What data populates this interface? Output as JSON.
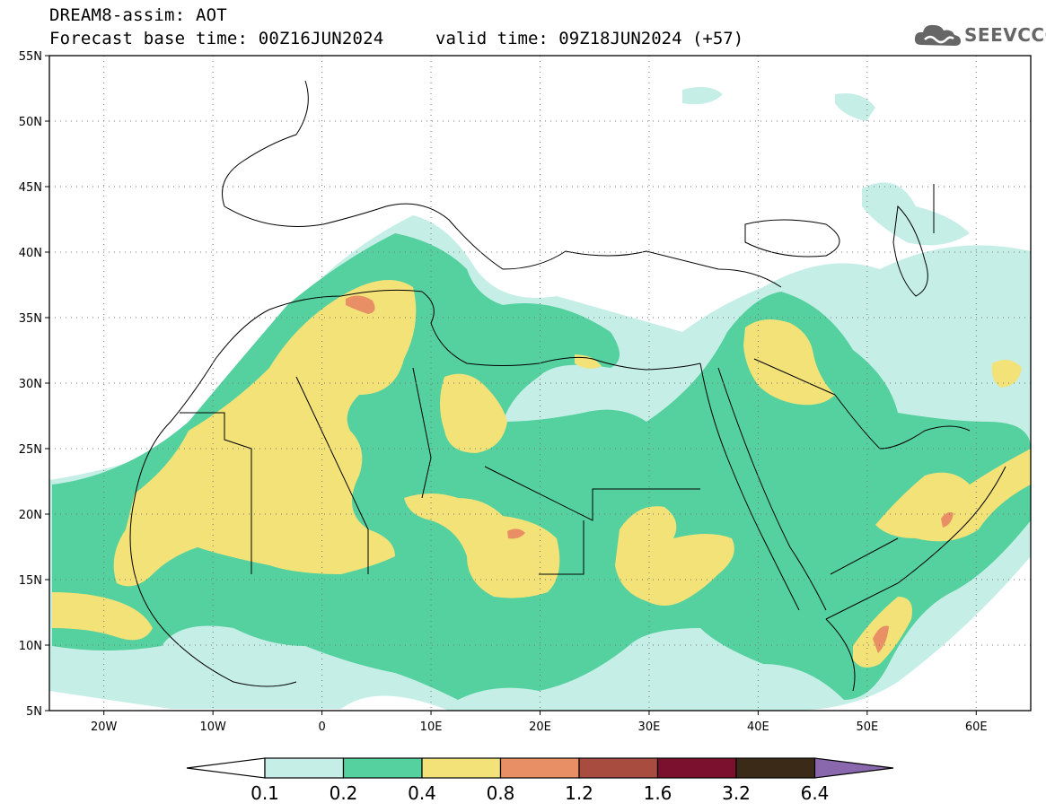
{
  "title": {
    "line1": "DREAM8-assim: AOT",
    "line2": "Forecast base time: 00Z16JUN2024",
    "valid": "valid time: 09Z18JUN2024 (+57)"
  },
  "logo": {
    "text": "SEEVCCC",
    "icon": "cloud-icon"
  },
  "map": {
    "lon_range": [
      -25,
      65
    ],
    "lat_range": [
      5,
      55
    ],
    "lat_labels": [
      "55N",
      "50N",
      "45N",
      "40N",
      "35N",
      "30N",
      "25N",
      "20N",
      "15N",
      "10N",
      "5N"
    ],
    "lon_labels": [
      "20W",
      "10W",
      "0",
      "10E",
      "20E",
      "30E",
      "40E",
      "50E",
      "60E"
    ],
    "grid": "dotted"
  },
  "colorbar": {
    "levels": [
      "0.1",
      "0.2",
      "0.4",
      "0.8",
      "1.2",
      "1.6",
      "3.2",
      "6.4"
    ],
    "colors": [
      "#ffffff",
      "#c5eee7",
      "#54d19f",
      "#f2e277",
      "#e98f65",
      "#a84c3f",
      "#7a0f2e",
      "#3b2a18",
      "#8a68ad"
    ]
  }
}
